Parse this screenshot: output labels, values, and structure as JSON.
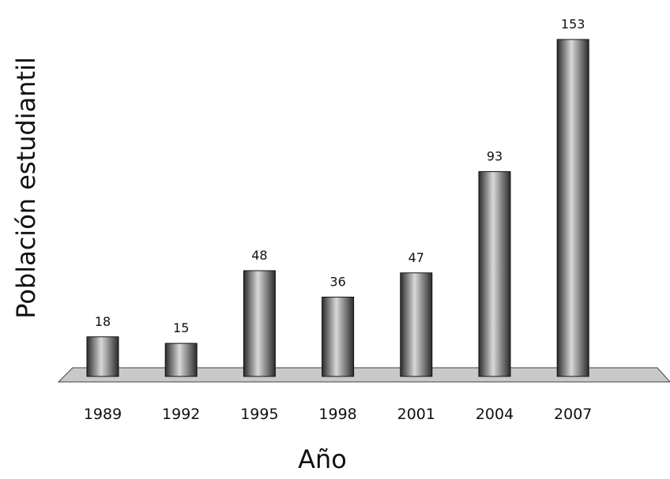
{
  "chart_data": {
    "type": "bar",
    "title": "",
    "xlabel": "Año",
    "ylabel": "Población estudiantil",
    "categories": [
      "1989",
      "1992",
      "1995",
      "1998",
      "2001",
      "2004",
      "2007"
    ],
    "values": [
      18,
      15,
      48,
      36,
      47,
      93,
      153
    ],
    "ylim": [
      0,
      153
    ],
    "grid": false,
    "legend": "none",
    "colors": {
      "bar_dark": "#2b2b2b",
      "bar_light": "#d9d9d9",
      "floor": "#c9c9c9"
    }
  }
}
